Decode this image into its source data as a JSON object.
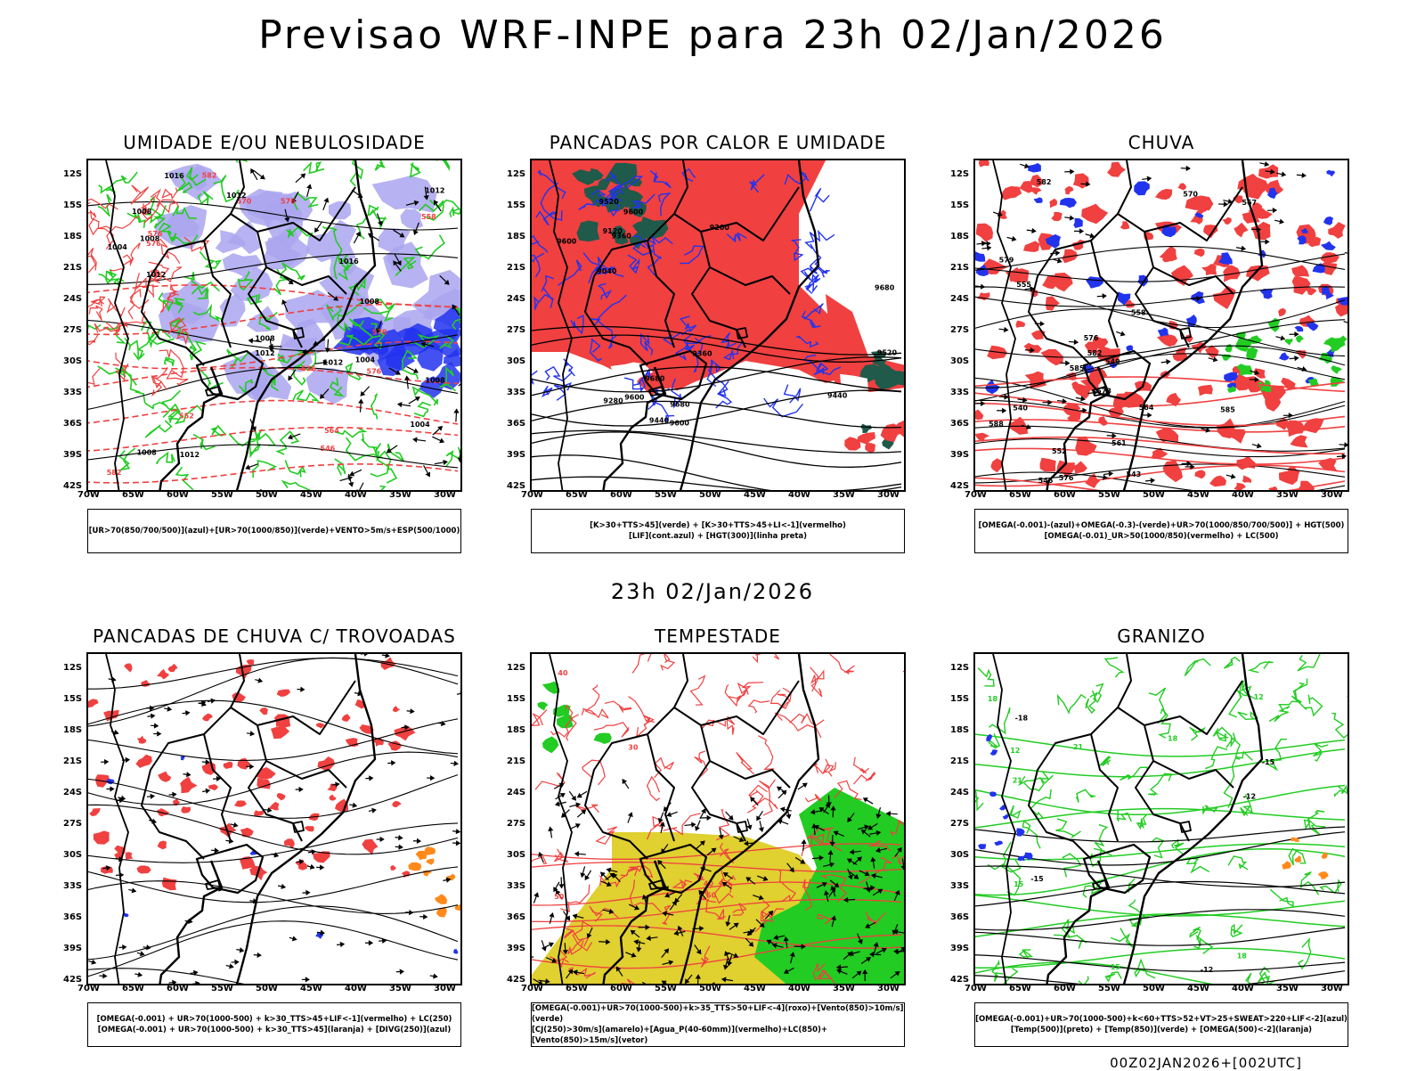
{
  "header": {
    "title": "Previsao WRF-INPE  para 23h 02/Jan/2026"
  },
  "middle": {
    "title": "23h 02/Jan/2026"
  },
  "footer": {
    "run": "00Z02JAN2026+[002UTC]"
  },
  "axes": {
    "lat": [
      "12S",
      "15S",
      "18S",
      "21S",
      "24S",
      "27S",
      "30S",
      "33S",
      "36S",
      "39S",
      "42S"
    ],
    "lon": [
      "70W",
      "65W",
      "60W",
      "55W",
      "50W",
      "45W",
      "40W",
      "35W",
      "30W"
    ]
  },
  "colors": {
    "red": "#f04040",
    "green": "#22cc22",
    "blue": "#2233ee",
    "lavender": "#aaa5ee",
    "orange": "#ff8a1a",
    "yellow": "#e0d030",
    "darkgreen": "#1f5a4a",
    "black": "#000000"
  },
  "panels": [
    {
      "title": "UMIDADE E/OU NEBULOSIDADE",
      "legend": [
        "[UR>70(850/700/500)](azul)+[UR>70(1000/850)](verde)+VENTO>5m/s+ESP(500/1000)"
      ],
      "labels": [
        "1012",
        "1012",
        "1012",
        "1008",
        "1012",
        "1012",
        "1016",
        "1008",
        "1012",
        "1004",
        "1008",
        "1008",
        "1008",
        "1008",
        "1004",
        "1004",
        "1016",
        "576",
        "582",
        "576",
        "570",
        "564",
        "558",
        "552",
        "546",
        "576",
        "570",
        "582",
        "576",
        "576"
      ]
    },
    {
      "title": "PANCADAS POR CALOR E UMIDADE",
      "legend": [
        "[K>30+TTS>45](verde)  +  [K>30+TTS>45+LI<-1](vermelho)",
        "[LIF](cont.azul)  +  [HGT(300)](linha preta)"
      ],
      "labels": [
        "9600",
        "9680",
        "9600",
        "9680",
        "9600",
        "9600",
        "9520",
        "9520",
        "9440",
        "9360",
        "9280",
        "9200",
        "9120",
        "9040",
        "9440",
        "9360",
        "9680"
      ]
    },
    {
      "title": "CHUVA",
      "legend": [
        "[OMEGA(-0.001)-(azul)+OMEGA(-0.3)-(verde)+UR>70(1000/850/700/500)]  +  HGT(500)",
        "[OMEGA(-0.01)_UR>50(1000/850)(vermelho)  +  LC(500)"
      ],
      "labels": [
        "585",
        "582",
        "579",
        "576",
        "573",
        "570",
        "567",
        "564",
        "561",
        "558",
        "555",
        "552",
        "549",
        "546",
        "543",
        "540",
        "588",
        "585",
        "582",
        "576"
      ]
    },
    {
      "title": "PANCADAS DE CHUVA C/ TROVOADAS",
      "legend": [
        "[OMEGA(-0.001)  +  UR>70(1000-500)  +  k>30_TTS>45+LIF<-1](vermelho)  +  LC(250)",
        "[OMEGA(-0.001)  +  UR>70(1000-500)  +  k>30_TTS>45](laranja)  +  [DIVG(250)](azul)"
      ],
      "labels": []
    },
    {
      "title": "TEMPESTADE",
      "legend": [
        "[OMEGA(-0.001)+UR>70(1000-500)+k>35_TTS>50+LIF<-4](roxo)+[Vento(850)>10m/s](verde)",
        "[CJ(250)>30m/s](amarelo)+[Agua_P(40-60mm)](vermelho)+LC(850)+[Vento(850)>15m/s](vetor)"
      ],
      "labels": [
        "30",
        "40",
        "50",
        "40",
        "50"
      ]
    },
    {
      "title": "GRANIZO",
      "legend": [
        "[OMEGA(-0.001)+UR>70(1000-500)+k<60+TTS>52+VT>25+SWEAT>220+LIF<-2](azul)",
        "[Temp(500)](preto)  +  [Temp(850)](verde)  +  [OMEGA(500)<-2](laranja)"
      ],
      "labels": [
        "21",
        "18",
        "15",
        "12",
        "21",
        "18",
        "15",
        "12",
        "-15",
        "-18",
        "-15",
        "-12",
        "-12",
        "18"
      ]
    }
  ]
}
